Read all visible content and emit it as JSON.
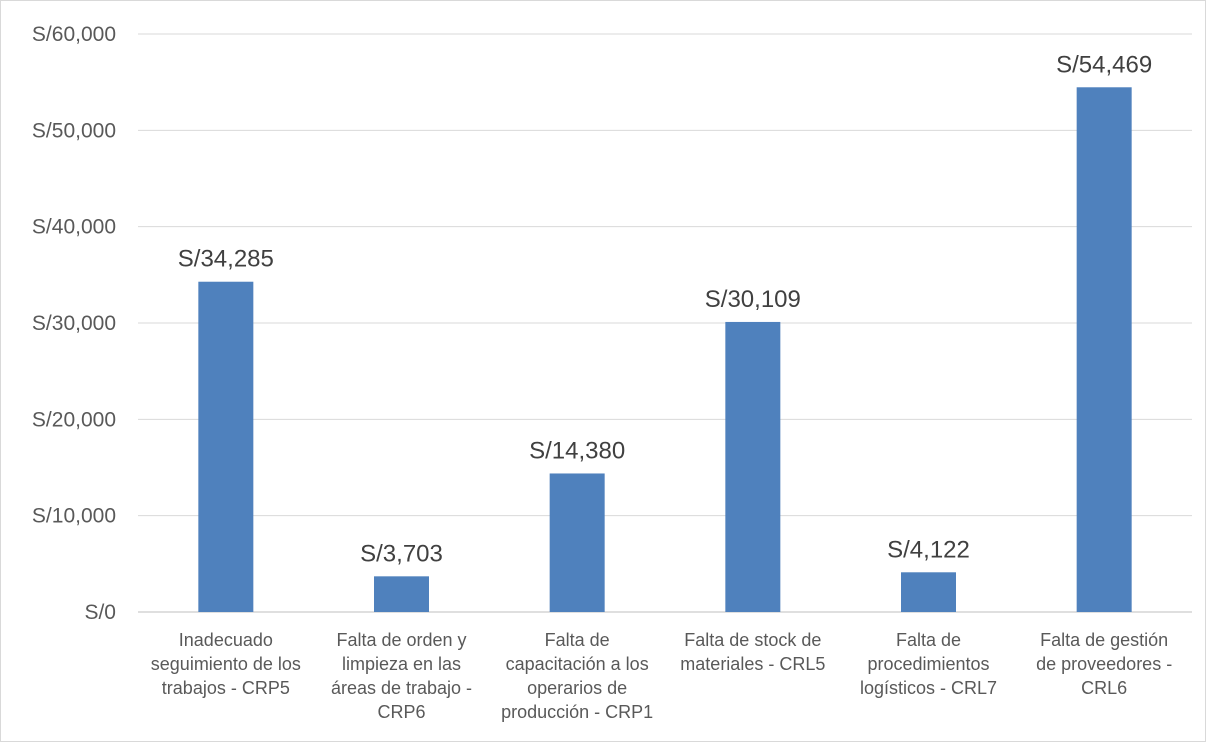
{
  "chart_data": {
    "type": "bar",
    "categories": [
      [
        "Inadecuado",
        "seguimiento de los",
        "trabajos - CRP5"
      ],
      [
        "Falta de orden y",
        "limpieza en las",
        "áreas de trabajo -",
        "CRP6"
      ],
      [
        "Falta de",
        "capacitación a los",
        "operarios de",
        "producción - CRP1"
      ],
      [
        "Falta de stock de",
        "materiales - CRL5"
      ],
      [
        "Falta de",
        "procedimientos",
        "logísticos - CRL7"
      ],
      [
        "Falta de gestión",
        "de proveedores -",
        "CRL6"
      ]
    ],
    "values": [
      34285,
      3703,
      14380,
      30109,
      4122,
      54469
    ],
    "data_labels": [
      "S/34,285",
      "S/3,703",
      "S/14,380",
      "S/30,109",
      "S/4,122",
      "S/54,469"
    ],
    "y_ticks": [
      0,
      10000,
      20000,
      30000,
      40000,
      50000,
      60000
    ],
    "y_tick_labels": [
      "S/0",
      "S/10,000",
      "S/20,000",
      "S/30,000",
      "S/40,000",
      "S/50,000",
      "S/60,000"
    ],
    "ylim": [
      0,
      60000
    ],
    "grid": true,
    "legend": "none",
    "colors": {
      "bar": "#4f81bd"
    }
  }
}
